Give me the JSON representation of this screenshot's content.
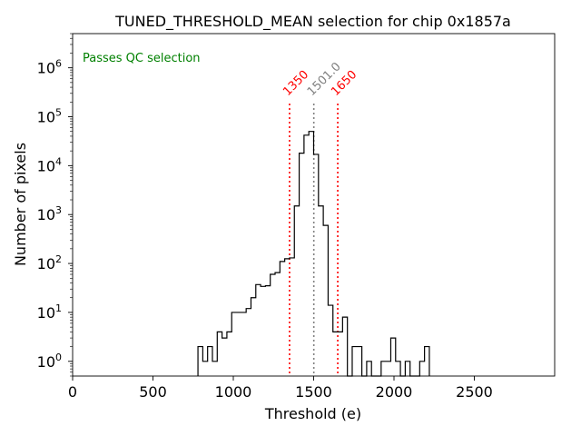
{
  "chart_data": {
    "type": "histogram",
    "title": "TUNED_THRESHOLD_MEAN selection for chip 0x1857a",
    "xlabel": "Threshold (e)",
    "ylabel": "Number of pixels",
    "xlim": [
      0,
      3000
    ],
    "ylim": [
      0.5,
      5000000
    ],
    "yscale": "log",
    "x_ticks": [
      0,
      500,
      1000,
      1500,
      2000,
      2500
    ],
    "x_tick_labels": [
      "0",
      "500",
      "1000",
      "1500",
      "2000",
      "2500"
    ],
    "y_ticks": [
      1,
      10,
      100,
      1000,
      10000,
      100000,
      1000000
    ],
    "y_tick_bases": [
      "10",
      "10",
      "10",
      "10",
      "10",
      "10",
      "10"
    ],
    "y_tick_exps": [
      "0",
      "1",
      "2",
      "3",
      "4",
      "5",
      "6"
    ],
    "bin_width": 30,
    "bin_start": 780,
    "counts": [
      2,
      1,
      2,
      1,
      4,
      3,
      4,
      10,
      10,
      10,
      12,
      20,
      37,
      34,
      35,
      60,
      65,
      110,
      125,
      130,
      1500,
      18000,
      42000,
      50000,
      17000,
      1500,
      600,
      14,
      4,
      4,
      8,
      0,
      2,
      2,
      0,
      1,
      0,
      0,
      1,
      1,
      3,
      1,
      0,
      1,
      0,
      0,
      1,
      2
    ],
    "histogram_color": "#000000",
    "annotation": {
      "text": "Passes QC selection",
      "color": "#008000"
    },
    "vlines": [
      {
        "x": 1350,
        "label": "1350",
        "color": "#ff0000",
        "style": "dotted"
      },
      {
        "x": 1501,
        "label": "1501.0",
        "color": "#808080",
        "style": "dotted"
      },
      {
        "x": 1650,
        "label": "1650",
        "color": "#ff0000",
        "style": "dotted"
      }
    ]
  }
}
